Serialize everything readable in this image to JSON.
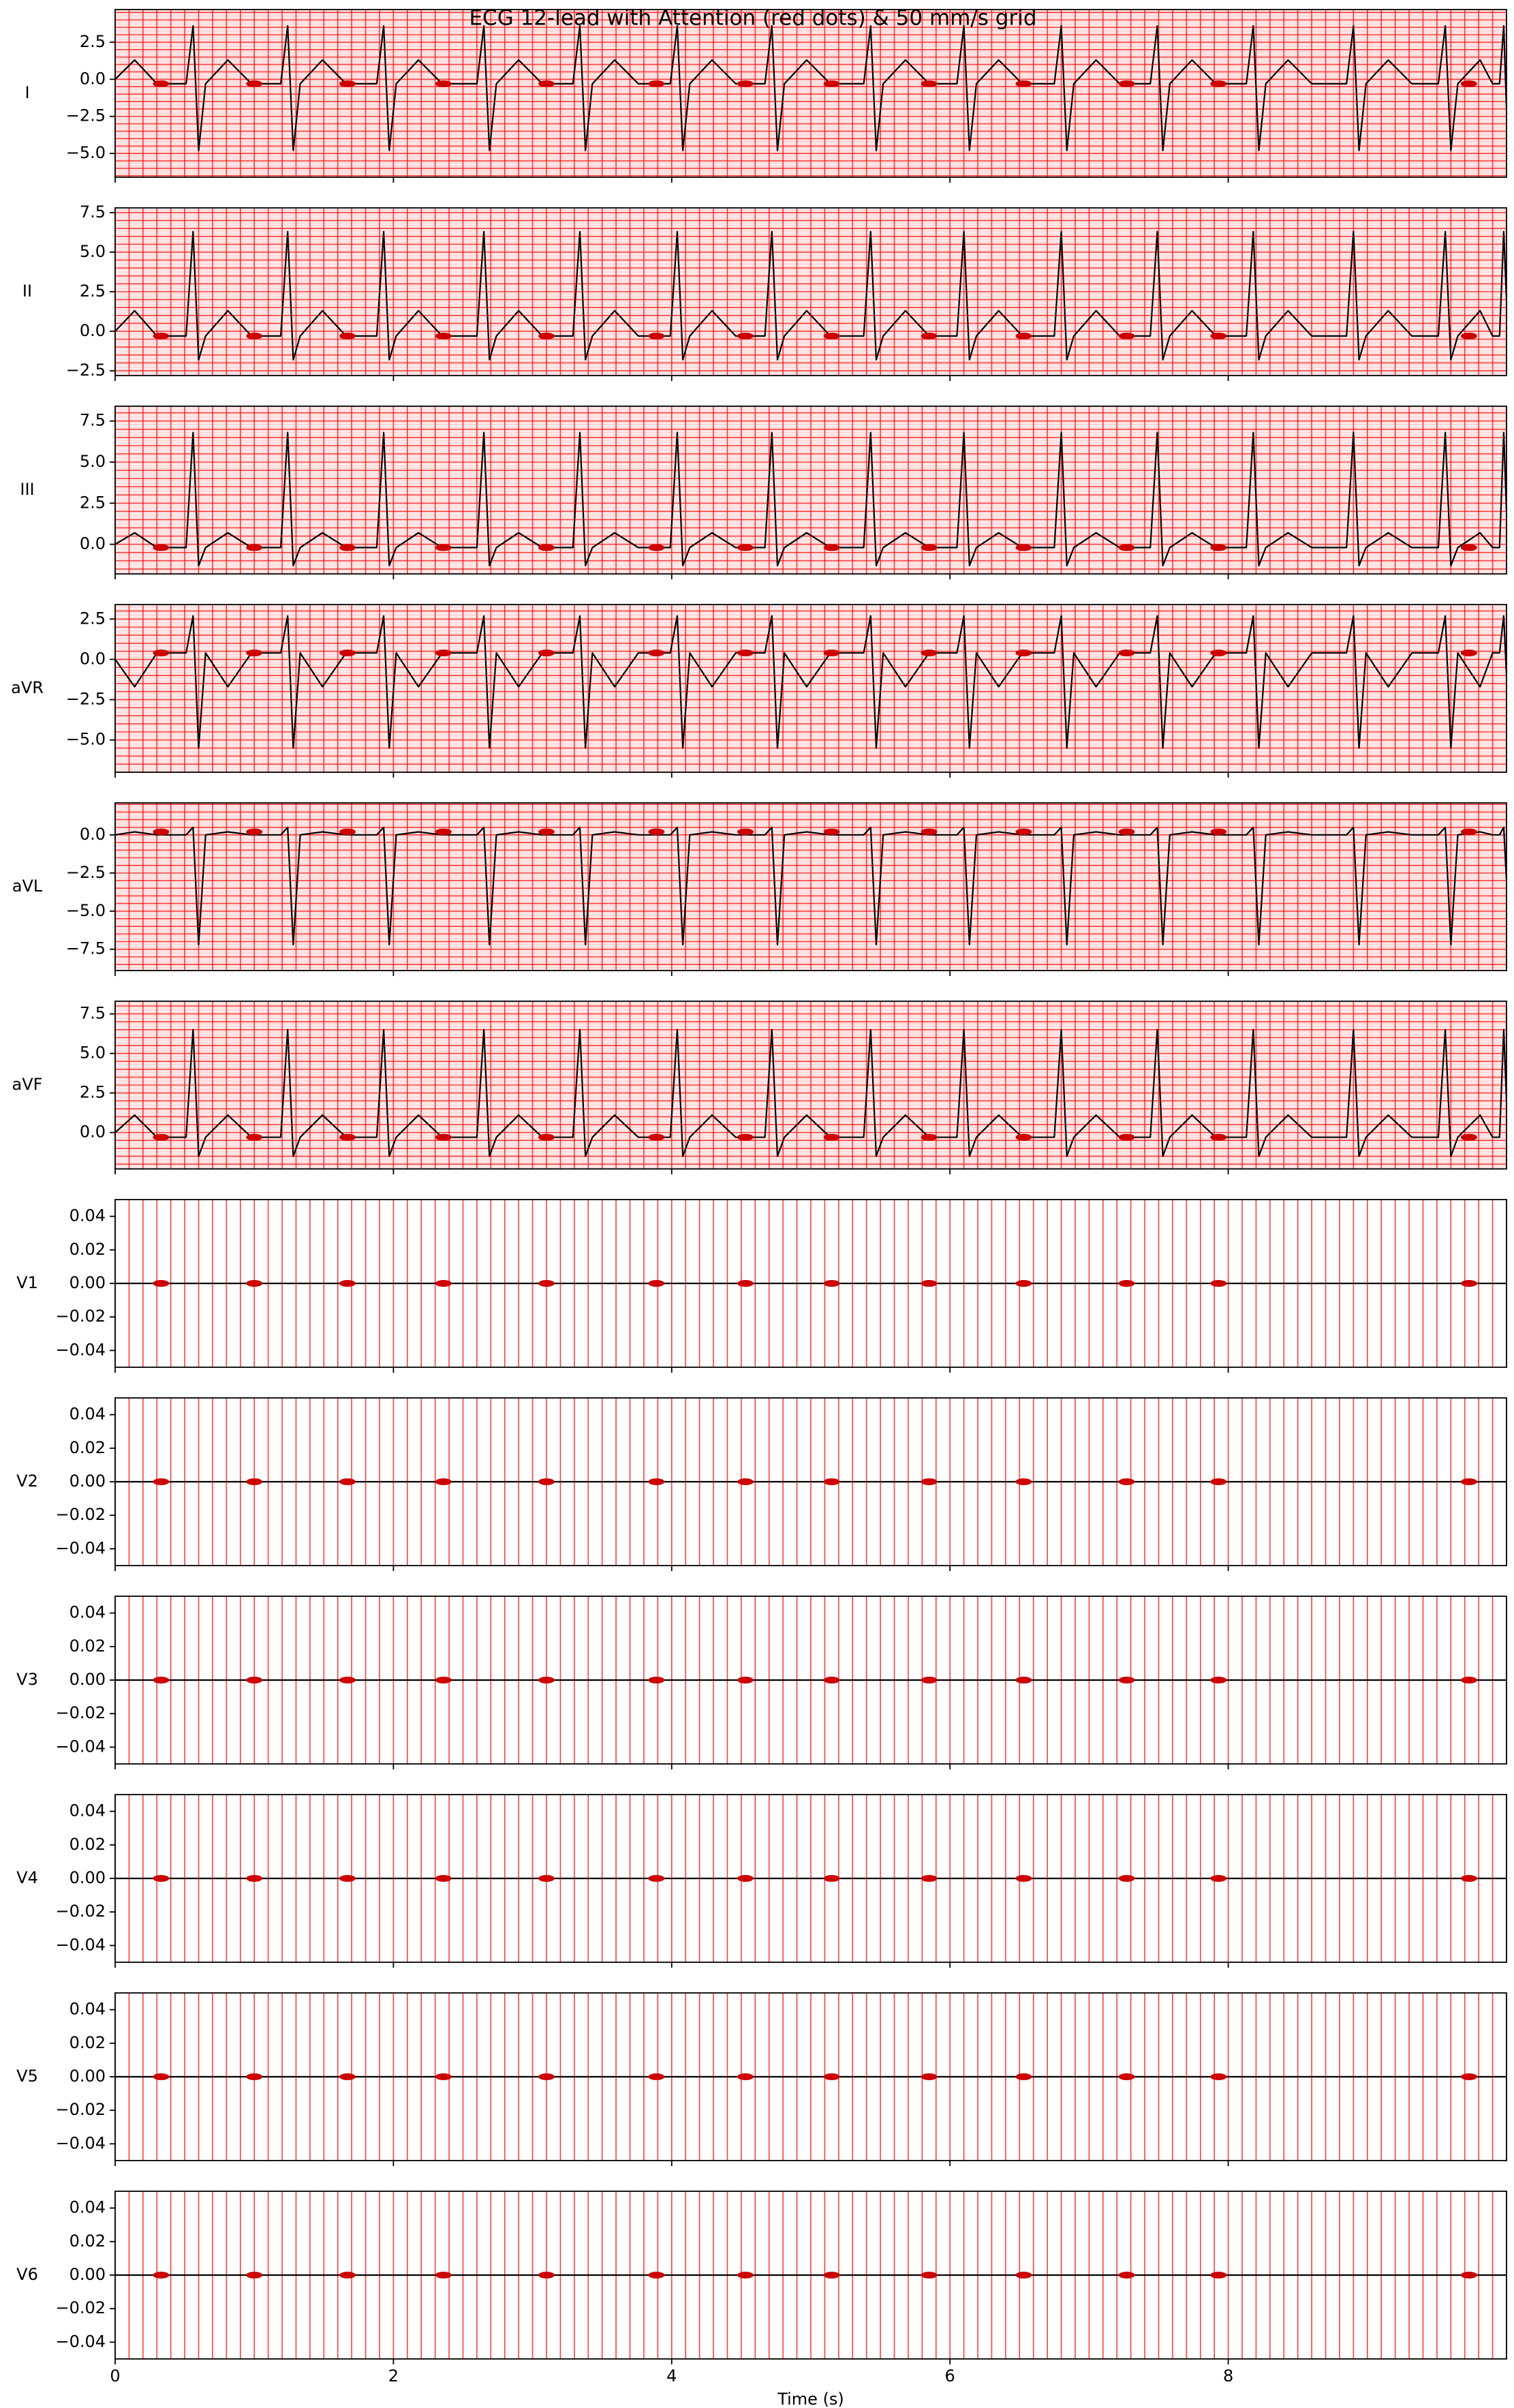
{
  "chart_data": {
    "type": "multi-line",
    "title": "ECG 12-lead with Attention (red dots) & 50 mm/s grid",
    "xlabel": "Time (s)",
    "xlim": [
      0,
      10
    ],
    "xticks": [
      0,
      2,
      4,
      6,
      8
    ],
    "grid": true,
    "grid_color": "#ff0000",
    "grid_x_step": 0.1,
    "grid_y_step": 0.5,
    "grid_y_minor_step": 0.1,
    "line_color": "#000000",
    "attention_color": "#cc0000",
    "x": [
      0,
      0.14,
      0.3,
      0.51,
      0.56,
      0.6,
      0.65,
      0.81,
      0.98,
      1.19,
      1.24,
      1.28,
      1.33,
      1.49,
      1.66,
      1.88,
      1.93,
      1.97,
      2.02,
      2.18,
      2.35,
      2.6,
      2.65,
      2.69,
      2.74,
      2.9,
      3.07,
      3.29,
      3.34,
      3.38,
      3.43,
      3.59,
      3.76,
      3.99,
      4.04,
      4.08,
      4.13,
      4.29,
      4.46,
      4.67,
      4.72,
      4.76,
      4.81,
      4.97,
      5.14,
      5.38,
      5.43,
      5.47,
      5.52,
      5.68,
      5.85,
      6.05,
      6.1,
      6.14,
      6.19,
      6.35,
      6.52,
      6.75,
      6.8,
      6.84,
      6.89,
      7.05,
      7.22,
      7.44,
      7.49,
      7.53,
      7.58,
      7.74,
      7.91,
      8.13,
      8.18,
      8.22,
      8.27,
      8.43,
      8.6,
      8.85,
      8.9,
      8.94,
      8.99,
      9.15,
      9.32,
      9.51,
      9.56,
      9.6,
      9.65,
      9.81,
      9.9,
      9.95,
      9.98,
      10
    ],
    "attention_x": [
      0.33,
      1.0,
      1.67,
      2.36,
      3.1,
      3.89,
      4.53,
      5.15,
      5.85,
      6.53,
      7.27,
      7.93,
      9.73
    ],
    "panels": [
      {
        "type": "line",
        "ylabel": "I",
        "ylim": [
          -6.6,
          4.7
        ],
        "yticks": [
          {
            "value": -5,
            "label": "−5.0"
          },
          {
            "value": -2.5,
            "label": "−2.5"
          },
          {
            "value": 0,
            "label": "0.0"
          },
          2.5
        ],
        "values": [
          0,
          1.3,
          -0.3,
          -0.3,
          3.6,
          -4.8,
          -0.3,
          1.3,
          -0.3,
          -0.3,
          3.6,
          -4.8,
          -0.3,
          1.3,
          -0.3,
          -0.3,
          3.6,
          -4.8,
          -0.3,
          1.3,
          -0.3,
          -0.3,
          3.6,
          -4.8,
          -0.3,
          1.3,
          -0.3,
          -0.3,
          3.6,
          -4.8,
          -0.3,
          1.3,
          -0.3,
          -0.3,
          3.6,
          -4.8,
          -0.3,
          1.3,
          -0.3,
          -0.3,
          3.6,
          -4.8,
          -0.3,
          1.3,
          -0.3,
          -0.3,
          3.6,
          -4.8,
          -0.3,
          1.3,
          -0.3,
          -0.3,
          3.6,
          -4.8,
          -0.3,
          1.3,
          -0.3,
          -0.3,
          3.6,
          -4.8,
          -0.3,
          1.3,
          -0.3,
          -0.3,
          3.6,
          -4.8,
          -0.3,
          1.3,
          -0.3,
          -0.3,
          3.6,
          -4.8,
          -0.3,
          1.3,
          -0.3,
          -0.3,
          3.6,
          -4.8,
          -0.3,
          1.3,
          -0.3,
          -0.3,
          3.6,
          -4.8,
          -0.3,
          1.3,
          -0.3,
          -0.3,
          3.6,
          -2
        ],
        "attention_values": [
          -0.3,
          -0.3,
          -0.3,
          -0.3,
          -0.3,
          -0.3,
          -0.3,
          -0.3,
          -0.3,
          -0.3,
          -0.3,
          -0.3,
          -0.3
        ]
      },
      {
        "type": "line",
        "ylabel": "II",
        "ylim": [
          -2.8,
          7.8
        ],
        "yticks": [
          {
            "value": -2.5,
            "label": "−2.5"
          },
          {
            "value": 0,
            "label": "0.0"
          },
          2.5,
          {
            "value": 5,
            "label": "5.0"
          },
          7.5
        ],
        "values": [
          0,
          1.3,
          -0.3,
          -0.3,
          6.3,
          -1.8,
          -0.3,
          1.3,
          -0.3,
          -0.3,
          6.3,
          -1.8,
          -0.3,
          1.3,
          -0.3,
          -0.3,
          6.3,
          -1.8,
          -0.3,
          1.3,
          -0.3,
          -0.3,
          6.3,
          -1.8,
          -0.3,
          1.3,
          -0.3,
          -0.3,
          6.3,
          -1.8,
          -0.3,
          1.3,
          -0.3,
          -0.3,
          6.3,
          -1.8,
          -0.3,
          1.3,
          -0.3,
          -0.3,
          6.3,
          -1.8,
          -0.3,
          1.3,
          -0.3,
          -0.3,
          6.3,
          -1.8,
          -0.3,
          1.3,
          -0.3,
          -0.3,
          6.3,
          -1.8,
          -0.3,
          1.3,
          -0.3,
          -0.3,
          6.3,
          -1.8,
          -0.3,
          1.3,
          -0.3,
          -0.3,
          6.3,
          -1.8,
          -0.3,
          1.3,
          -0.3,
          -0.3,
          6.3,
          -1.8,
          -0.3,
          1.3,
          -0.3,
          -0.3,
          6.3,
          -1.8,
          -0.3,
          1.3,
          -0.3,
          -0.3,
          6.3,
          -1.8,
          -0.3,
          1.3,
          -0.3,
          -0.3,
          6.3,
          2
        ],
        "attention_values": [
          -0.3,
          -0.3,
          -0.3,
          -0.3,
          -0.3,
          -0.3,
          -0.3,
          -0.3,
          -0.3,
          -0.3,
          -0.3,
          -0.3,
          -0.3
        ]
      },
      {
        "type": "line",
        "ylabel": "III",
        "ylim": [
          -1.8,
          8.4
        ],
        "yticks": [
          {
            "value": 0,
            "label": "0.0"
          },
          2.5,
          {
            "value": 5,
            "label": "5.0"
          },
          7.5
        ],
        "values": [
          0,
          0.7,
          -0.2,
          -0.2,
          6.8,
          -1.3,
          -0.2,
          0.7,
          -0.2,
          -0.2,
          6.8,
          -1.3,
          -0.2,
          0.7,
          -0.2,
          -0.2,
          6.8,
          -1.3,
          -0.2,
          0.7,
          -0.2,
          -0.2,
          6.8,
          -1.3,
          -0.2,
          0.7,
          -0.2,
          -0.2,
          6.8,
          -1.3,
          -0.2,
          0.7,
          -0.2,
          -0.2,
          6.8,
          -1.3,
          -0.2,
          0.7,
          -0.2,
          -0.2,
          6.8,
          -1.3,
          -0.2,
          0.7,
          -0.2,
          -0.2,
          6.8,
          -1.3,
          -0.2,
          0.7,
          -0.2,
          -0.2,
          6.8,
          -1.3,
          -0.2,
          0.7,
          -0.2,
          -0.2,
          6.8,
          -1.3,
          -0.2,
          0.7,
          -0.2,
          -0.2,
          6.8,
          -1.3,
          -0.2,
          0.7,
          -0.2,
          -0.2,
          6.8,
          -1.3,
          -0.2,
          0.7,
          -0.2,
          -0.2,
          6.8,
          -1.3,
          -0.2,
          0.7,
          -0.2,
          -0.2,
          6.8,
          -1.3,
          -0.2,
          0.7,
          -0.2,
          -0.2,
          6.8,
          2
        ],
        "attention_values": [
          -0.2,
          -0.2,
          -0.2,
          -0.2,
          -0.2,
          -0.2,
          -0.2,
          -0.2,
          -0.2,
          -0.2,
          -0.2,
          -0.2,
          -0.2
        ]
      },
      {
        "type": "line",
        "ylabel": "aVR",
        "ylim": [
          -7.0,
          3.4
        ],
        "yticks": [
          {
            "value": -5,
            "label": "−5.0"
          },
          {
            "value": -2.5,
            "label": "−2.5"
          },
          {
            "value": 0,
            "label": "0.0"
          },
          2.5
        ],
        "values": [
          0,
          -1.7,
          0.4,
          0.4,
          2.7,
          -5.5,
          0.4,
          -1.7,
          0.4,
          0.4,
          2.7,
          -5.5,
          0.4,
          -1.7,
          0.4,
          0.4,
          2.7,
          -5.5,
          0.4,
          -1.7,
          0.4,
          0.4,
          2.7,
          -5.5,
          0.4,
          -1.7,
          0.4,
          0.4,
          2.7,
          -5.5,
          0.4,
          -1.7,
          0.4,
          0.4,
          2.7,
          -5.5,
          0.4,
          -1.7,
          0.4,
          0.4,
          2.7,
          -5.5,
          0.4,
          -1.7,
          0.4,
          0.4,
          2.7,
          -5.5,
          0.4,
          -1.7,
          0.4,
          0.4,
          2.7,
          -5.5,
          0.4,
          -1.7,
          0.4,
          0.4,
          2.7,
          -5.5,
          0.4,
          -1.7,
          0.4,
          0.4,
          2.7,
          -5.5,
          0.4,
          -1.7,
          0.4,
          0.4,
          2.7,
          -5.5,
          0.4,
          -1.7,
          0.4,
          0.4,
          2.7,
          -5.5,
          0.4,
          -1.7,
          0.4,
          0.4,
          2.7,
          -5.5,
          0.4,
          -1.7,
          0.4,
          0.4,
          2.7,
          -1
        ],
        "attention_values": [
          0.4,
          0.4,
          0.4,
          0.4,
          0.4,
          0.4,
          0.4,
          0.4,
          0.4,
          0.4,
          0.4,
          0.4,
          0.4
        ]
      },
      {
        "type": "line",
        "ylabel": "aVL",
        "ylim": [
          -8.9,
          2.1
        ],
        "yticks": [
          {
            "value": -7.5,
            "label": "−7.5"
          },
          {
            "value": -5,
            "label": "−5.0"
          },
          {
            "value": -2.5,
            "label": "−2.5"
          },
          {
            "value": 0,
            "label": "0.0"
          }
        ],
        "values": [
          0,
          0.2,
          0,
          0,
          0.5,
          -7.2,
          0,
          0.2,
          0,
          0,
          0.5,
          -7.2,
          0,
          0.2,
          0,
          0,
          0.5,
          -7.2,
          0,
          0.2,
          0,
          0,
          0.5,
          -7.2,
          0,
          0.2,
          0,
          0,
          0.5,
          -7.2,
          0,
          0.2,
          0,
          0,
          0.5,
          -7.2,
          0,
          0.2,
          0,
          0,
          0.5,
          -7.2,
          0,
          0.2,
          0,
          0,
          0.5,
          -7.2,
          0,
          0.2,
          0,
          0,
          0.5,
          -7.2,
          0,
          0.2,
          0,
          0,
          0.5,
          -7.2,
          0,
          0.2,
          0,
          0,
          0.5,
          -7.2,
          0,
          0.2,
          0,
          0,
          0.5,
          -7.2,
          0,
          0.2,
          0,
          0,
          0.5,
          -7.2,
          0,
          0.2,
          0,
          0,
          0.5,
          -7.2,
          0,
          0.2,
          0,
          0,
          0.5,
          -3
        ],
        "attention_values": [
          0.2,
          0.2,
          0.2,
          0.2,
          0.2,
          0.2,
          0.2,
          0.2,
          0.2,
          0.2,
          0.2,
          0.2,
          0.2
        ]
      },
      {
        "type": "line",
        "ylabel": "aVF",
        "ylim": [
          -2.3,
          8.3
        ],
        "yticks": [
          {
            "value": 0,
            "label": "0.0"
          },
          2.5,
          {
            "value": 5,
            "label": "5.0"
          },
          7.5
        ],
        "values": [
          0,
          1.1,
          -0.3,
          -0.3,
          6.5,
          -1.5,
          -0.3,
          1.1,
          -0.3,
          -0.3,
          6.5,
          -1.5,
          -0.3,
          1.1,
          -0.3,
          -0.3,
          6.5,
          -1.5,
          -0.3,
          1.1,
          -0.3,
          -0.3,
          6.5,
          -1.5,
          -0.3,
          1.1,
          -0.3,
          -0.3,
          6.5,
          -1.5,
          -0.3,
          1.1,
          -0.3,
          -0.3,
          6.5,
          -1.5,
          -0.3,
          1.1,
          -0.3,
          -0.3,
          6.5,
          -1.5,
          -0.3,
          1.1,
          -0.3,
          -0.3,
          6.5,
          -1.5,
          -0.3,
          1.1,
          -0.3,
          -0.3,
          6.5,
          -1.5,
          -0.3,
          1.1,
          -0.3,
          -0.3,
          6.5,
          -1.5,
          -0.3,
          1.1,
          -0.3,
          -0.3,
          6.5,
          -1.5,
          -0.3,
          1.1,
          -0.3,
          -0.3,
          6.5,
          -1.5,
          -0.3,
          1.1,
          -0.3,
          -0.3,
          6.5,
          -1.5,
          -0.3,
          1.1,
          -0.3,
          -0.3,
          6.5,
          -1.5,
          -0.3,
          1.1,
          -0.3,
          -0.3,
          6.5,
          2
        ],
        "attention_values": [
          -0.3,
          -0.3,
          -0.3,
          -0.3,
          -0.3,
          -0.3,
          -0.3,
          -0.3,
          -0.3,
          -0.3,
          -0.3,
          -0.3,
          -0.3
        ]
      },
      {
        "type": "line",
        "ylabel": "V1",
        "ylim": [
          -0.05,
          0.05
        ],
        "yticks": [
          {
            "value": -0.04,
            "label": "−0.04"
          },
          {
            "value": -0.02,
            "label": "−0.02"
          },
          {
            "value": 0,
            "label": "0.00"
          },
          0.02,
          0.04
        ],
        "x": [
          0,
          10
        ],
        "values": [
          0,
          0
        ],
        "attention_values": [
          0,
          0,
          0,
          0,
          0,
          0,
          0,
          0,
          0,
          0,
          0,
          0,
          0
        ]
      },
      {
        "type": "line",
        "ylabel": "V2",
        "ylim": [
          -0.05,
          0.05
        ],
        "yticks": [
          {
            "value": -0.04,
            "label": "−0.04"
          },
          {
            "value": -0.02,
            "label": "−0.02"
          },
          {
            "value": 0,
            "label": "0.00"
          },
          0.02,
          0.04
        ],
        "x": [
          0,
          10
        ],
        "values": [
          0,
          0
        ],
        "attention_values": [
          0,
          0,
          0,
          0,
          0,
          0,
          0,
          0,
          0,
          0,
          0,
          0,
          0
        ]
      },
      {
        "type": "line",
        "ylabel": "V3",
        "ylim": [
          -0.05,
          0.05
        ],
        "yticks": [
          {
            "value": -0.04,
            "label": "−0.04"
          },
          {
            "value": -0.02,
            "label": "−0.02"
          },
          {
            "value": 0,
            "label": "0.00"
          },
          0.02,
          0.04
        ],
        "x": [
          0,
          10
        ],
        "values": [
          0,
          0
        ],
        "attention_values": [
          0,
          0,
          0,
          0,
          0,
          0,
          0,
          0,
          0,
          0,
          0,
          0,
          0
        ]
      },
      {
        "type": "line",
        "ylabel": "V4",
        "ylim": [
          -0.05,
          0.05
        ],
        "yticks": [
          {
            "value": -0.04,
            "label": "−0.04"
          },
          {
            "value": -0.02,
            "label": "−0.02"
          },
          {
            "value": 0,
            "label": "0.00"
          },
          0.02,
          0.04
        ],
        "x": [
          0,
          10
        ],
        "values": [
          0,
          0
        ],
        "attention_values": [
          0,
          0,
          0,
          0,
          0,
          0,
          0,
          0,
          0,
          0,
          0,
          0,
          0
        ]
      },
      {
        "type": "line",
        "ylabel": "V5",
        "ylim": [
          -0.05,
          0.05
        ],
        "yticks": [
          {
            "value": -0.04,
            "label": "−0.04"
          },
          {
            "value": -0.02,
            "label": "−0.02"
          },
          {
            "value": 0,
            "label": "0.00"
          },
          0.02,
          0.04
        ],
        "x": [
          0,
          10
        ],
        "values": [
          0,
          0
        ],
        "attention_values": [
          0,
          0,
          0,
          0,
          0,
          0,
          0,
          0,
          0,
          0,
          0,
          0,
          0
        ]
      },
      {
        "type": "line",
        "ylabel": "V6",
        "ylim": [
          -0.05,
          0.05
        ],
        "yticks": [
          {
            "value": -0.04,
            "label": "−0.04"
          },
          {
            "value": -0.02,
            "label": "−0.02"
          },
          {
            "value": 0,
            "label": "0.00"
          },
          0.02,
          0.04
        ],
        "x": [
          0,
          10
        ],
        "values": [
          0,
          0
        ],
        "attention_values": [
          0,
          0,
          0,
          0,
          0,
          0,
          0,
          0,
          0,
          0,
          0,
          0,
          0
        ]
      }
    ]
  }
}
